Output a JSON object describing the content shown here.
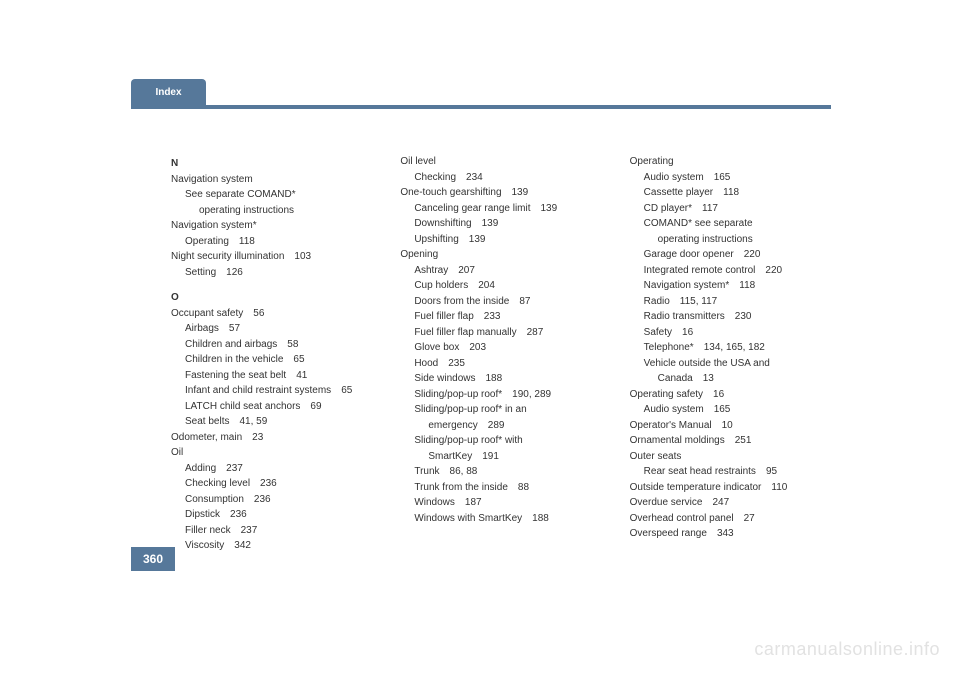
{
  "header": {
    "tab": "Index"
  },
  "page_number": "360",
  "watermark": "carmanualsonline.info",
  "columns": [
    [
      {
        "type": "heading",
        "text": "N"
      },
      {
        "lvl": 0,
        "text": "Navigation system"
      },
      {
        "lvl": 1,
        "text": "See separate COMAND*"
      },
      {
        "lvl": 2,
        "text": "operating instructions"
      },
      {
        "lvl": 0,
        "text": "Navigation system*"
      },
      {
        "lvl": 1,
        "text": "Operating",
        "page": "118"
      },
      {
        "lvl": 0,
        "text": "Night security illumination",
        "page": "103"
      },
      {
        "lvl": 1,
        "text": "Setting",
        "page": "126"
      },
      {
        "type": "spacer"
      },
      {
        "type": "heading",
        "text": "O"
      },
      {
        "lvl": 0,
        "text": "Occupant safety",
        "page": "56"
      },
      {
        "lvl": 1,
        "text": "Airbags",
        "page": "57"
      },
      {
        "lvl": 1,
        "text": "Children and airbags",
        "page": "58"
      },
      {
        "lvl": 1,
        "text": "Children in the vehicle",
        "page": "65"
      },
      {
        "lvl": 1,
        "text": "Fastening the seat belt",
        "page": "41"
      },
      {
        "lvl": 1,
        "text": "Infant and child restraint systems",
        "page": "65"
      },
      {
        "lvl": 1,
        "text": "LATCH child seat anchors",
        "page": "69"
      },
      {
        "lvl": 1,
        "text": "Seat belts",
        "page": "41, 59"
      },
      {
        "lvl": 0,
        "text": "Odometer, main",
        "page": "23"
      },
      {
        "lvl": 0,
        "text": "Oil"
      },
      {
        "lvl": 1,
        "text": "Adding",
        "page": "237"
      },
      {
        "lvl": 1,
        "text": "Checking level",
        "page": "236"
      },
      {
        "lvl": 1,
        "text": "Consumption",
        "page": "236"
      },
      {
        "lvl": 1,
        "text": "Dipstick",
        "page": "236"
      },
      {
        "lvl": 1,
        "text": "Filler neck",
        "page": "237"
      },
      {
        "lvl": 1,
        "text": "Viscosity",
        "page": "342"
      }
    ],
    [
      {
        "lvl": 0,
        "text": "Oil level"
      },
      {
        "lvl": 1,
        "text": "Checking",
        "page": "234"
      },
      {
        "lvl": 0,
        "text": "One-touch gearshifting",
        "page": "139"
      },
      {
        "lvl": 1,
        "text": "Canceling gear range limit",
        "page": "139"
      },
      {
        "lvl": 1,
        "text": "Downshifting",
        "page": "139"
      },
      {
        "lvl": 1,
        "text": "Upshifting",
        "page": "139"
      },
      {
        "lvl": 0,
        "text": "Opening"
      },
      {
        "lvl": 1,
        "text": "Ashtray",
        "page": "207"
      },
      {
        "lvl": 1,
        "text": "Cup holders",
        "page": "204"
      },
      {
        "lvl": 1,
        "text": "Doors from the inside",
        "page": "87"
      },
      {
        "lvl": 1,
        "text": "Fuel filler flap",
        "page": "233"
      },
      {
        "lvl": 1,
        "text": "Fuel filler flap manually",
        "page": "287"
      },
      {
        "lvl": 1,
        "text": "Glove box",
        "page": "203"
      },
      {
        "lvl": 1,
        "text": "Hood",
        "page": "235"
      },
      {
        "lvl": 1,
        "text": "Side windows",
        "page": "188"
      },
      {
        "lvl": 1,
        "text": "Sliding/pop-up roof*",
        "page": "190, 289"
      },
      {
        "lvl": 1,
        "text": "Sliding/pop-up roof* in an"
      },
      {
        "lvl": 2,
        "text": "emergency",
        "page": "289"
      },
      {
        "lvl": 1,
        "text": "Sliding/pop-up roof* with"
      },
      {
        "lvl": 2,
        "text": "SmartKey",
        "page": "191"
      },
      {
        "lvl": 1,
        "text": "Trunk",
        "page": "86, 88"
      },
      {
        "lvl": 1,
        "text": "Trunk from the inside",
        "page": "88"
      },
      {
        "lvl": 1,
        "text": "Windows",
        "page": "187"
      },
      {
        "lvl": 1,
        "text": "Windows with SmartKey",
        "page": "188"
      }
    ],
    [
      {
        "lvl": 0,
        "text": "Operating"
      },
      {
        "lvl": 1,
        "text": "Audio system",
        "page": "165"
      },
      {
        "lvl": 1,
        "text": "Cassette player",
        "page": "118"
      },
      {
        "lvl": 1,
        "text": "CD player*",
        "page": "117"
      },
      {
        "lvl": 1,
        "text": "COMAND* see separate"
      },
      {
        "lvl": 2,
        "text": "operating instructions"
      },
      {
        "lvl": 1,
        "text": "Garage door opener",
        "page": "220"
      },
      {
        "lvl": 1,
        "text": "Integrated remote control",
        "page": "220"
      },
      {
        "lvl": 1,
        "text": "Navigation system*",
        "page": "118"
      },
      {
        "lvl": 1,
        "text": "Radio",
        "page": "115, 117"
      },
      {
        "lvl": 1,
        "text": "Radio transmitters",
        "page": "230"
      },
      {
        "lvl": 1,
        "text": "Safety",
        "page": "16"
      },
      {
        "lvl": 1,
        "text": "Telephone*",
        "page": "134, 165, 182"
      },
      {
        "lvl": 1,
        "text": "Vehicle outside the USA and"
      },
      {
        "lvl": 2,
        "text": "Canada",
        "page": "13"
      },
      {
        "lvl": 0,
        "text": "Operating safety",
        "page": "16"
      },
      {
        "lvl": 1,
        "text": "Audio system",
        "page": "165"
      },
      {
        "lvl": 0,
        "text": "Operator's Manual",
        "page": "10"
      },
      {
        "lvl": 0,
        "text": "Ornamental moldings",
        "page": "251"
      },
      {
        "lvl": 0,
        "text": "Outer seats"
      },
      {
        "lvl": 1,
        "text": "Rear seat head restraints",
        "page": "95"
      },
      {
        "lvl": 0,
        "text": "Outside temperature indicator",
        "page": "110"
      },
      {
        "lvl": 0,
        "text": "Overdue service",
        "page": "247"
      },
      {
        "lvl": 0,
        "text": "Overhead control panel",
        "page": "27"
      },
      {
        "lvl": 0,
        "text": "Overspeed range",
        "page": "343"
      }
    ]
  ]
}
